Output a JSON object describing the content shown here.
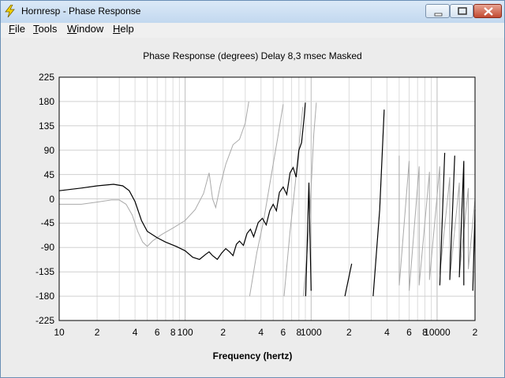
{
  "window": {
    "title": "Hornresp - Phase Response",
    "icon": "lightning-icon"
  },
  "menu": {
    "items": [
      {
        "label": "File",
        "underline": "F",
        "rest": "ile"
      },
      {
        "label": "Tools",
        "underline": "T",
        "rest": "ools"
      },
      {
        "label": "Window",
        "underline": "W",
        "rest": "indow"
      },
      {
        "label": "Help",
        "underline": "H",
        "rest": "elp"
      }
    ]
  },
  "chart_data": {
    "type": "line",
    "title": "Phase Response (degrees)    Delay 8,3 msec    Masked",
    "xlabel": "Frequency (hertz)",
    "ylabel": "",
    "x_scale": "log",
    "xlim": [
      10,
      20000
    ],
    "ylim": [
      -225,
      225
    ],
    "yticks": [
      225,
      180,
      135,
      90,
      45,
      0,
      -45,
      -90,
      -135,
      -180,
      -225
    ],
    "xticks": [
      {
        "value": 10,
        "label": "10"
      },
      {
        "value": 20,
        "label": "2"
      },
      {
        "value": 40,
        "label": "4"
      },
      {
        "value": 60,
        "label": "6"
      },
      {
        "value": 80,
        "label": "8"
      },
      {
        "value": 100,
        "label": "100"
      },
      {
        "value": 200,
        "label": "2"
      },
      {
        "value": 400,
        "label": "4"
      },
      {
        "value": 600,
        "label": "6"
      },
      {
        "value": 800,
        "label": "8"
      },
      {
        "value": 1000,
        "label": "1000"
      },
      {
        "value": 2000,
        "label": "2"
      },
      {
        "value": 4000,
        "label": "4"
      },
      {
        "value": 6000,
        "label": "6"
      },
      {
        "value": 8000,
        "label": "8"
      },
      {
        "value": 10000,
        "label": "10000"
      },
      {
        "value": 20000,
        "label": "2"
      }
    ],
    "grid": true,
    "series": [
      {
        "color": "#000000",
        "points": [
          [
            10,
            15
          ],
          [
            15,
            20
          ],
          [
            20,
            24
          ],
          [
            27,
            27
          ],
          [
            32,
            24
          ],
          [
            36,
            15
          ],
          [
            40,
            -5
          ],
          [
            45,
            -40
          ],
          [
            50,
            -60
          ],
          [
            60,
            -72
          ],
          [
            70,
            -80
          ],
          [
            85,
            -88
          ],
          [
            100,
            -96
          ],
          [
            115,
            -108
          ],
          [
            130,
            -112
          ],
          [
            145,
            -103
          ],
          [
            155,
            -98
          ],
          [
            165,
            -105
          ],
          [
            180,
            -112
          ],
          [
            195,
            -100
          ],
          [
            210,
            -92
          ],
          [
            225,
            -98
          ],
          [
            240,
            -105
          ],
          [
            255,
            -84
          ],
          [
            270,
            -78
          ],
          [
            290,
            -86
          ],
          [
            310,
            -64
          ],
          [
            330,
            -56
          ],
          [
            350,
            -70
          ],
          [
            380,
            -44
          ],
          [
            410,
            -36
          ],
          [
            440,
            -48
          ],
          [
            470,
            -22
          ],
          [
            500,
            -10
          ],
          [
            530,
            -22
          ],
          [
            560,
            12
          ],
          [
            600,
            22
          ],
          [
            640,
            8
          ],
          [
            680,
            48
          ],
          [
            720,
            58
          ],
          [
            760,
            40
          ],
          [
            800,
            90
          ],
          [
            840,
            104
          ],
          [
            880,
            150
          ],
          [
            900,
            178
          ],
          [
            905,
            -180
          ],
          [
            960,
            30
          ],
          [
            1000,
            -170
          ],
          [
            1100,
            178
          ],
          [
            1105,
            -180
          ],
          [
            1250,
            178
          ],
          [
            1255,
            -180
          ],
          [
            1500,
            170
          ],
          [
            1505,
            -180
          ],
          [
            1850,
            160
          ],
          [
            1855,
            -180
          ],
          [
            2100,
            -120
          ],
          [
            2300,
            178
          ],
          [
            2305,
            -180
          ],
          [
            2700,
            140
          ],
          [
            2705,
            -180
          ],
          [
            3100,
            178
          ],
          [
            3105,
            -180
          ],
          [
            3500,
            -20
          ],
          [
            3800,
            165
          ],
          [
            3805,
            -180
          ],
          [
            4300,
            110
          ],
          [
            4305,
            -180
          ],
          [
            4800,
            155
          ],
          [
            4805,
            -175
          ],
          [
            5300,
            120
          ],
          [
            5305,
            -180
          ],
          [
            5900,
            140
          ],
          [
            5905,
            -170
          ],
          [
            6500,
            115
          ],
          [
            6505,
            -180
          ],
          [
            7200,
            130
          ],
          [
            7205,
            -175
          ],
          [
            8000,
            100
          ],
          [
            8005,
            -170
          ],
          [
            8700,
            128
          ],
          [
            8705,
            -180
          ],
          [
            9600,
            90
          ],
          [
            9605,
            -175
          ],
          [
            10500,
            110
          ],
          [
            10505,
            -160
          ],
          [
            11500,
            85
          ],
          [
            11505,
            -170
          ],
          [
            12600,
            120
          ],
          [
            12605,
            -150
          ],
          [
            13800,
            80
          ],
          [
            13805,
            -175
          ],
          [
            15000,
            125
          ],
          [
            15005,
            -145
          ],
          [
            16300,
            70
          ],
          [
            16305,
            -160
          ],
          [
            17700,
            170
          ],
          [
            17705,
            -120
          ],
          [
            19200,
            150
          ],
          [
            19205,
            -170
          ],
          [
            20000,
            -20
          ]
        ]
      },
      {
        "color": "#aaaaaa",
        "points": [
          [
            10,
            -10
          ],
          [
            15,
            -10
          ],
          [
            20,
            -6
          ],
          [
            26,
            -2
          ],
          [
            30,
            -2
          ],
          [
            34,
            -10
          ],
          [
            38,
            -30
          ],
          [
            42,
            -60
          ],
          [
            46,
            -80
          ],
          [
            50,
            -88
          ],
          [
            55,
            -78
          ],
          [
            65,
            -66
          ],
          [
            80,
            -54
          ],
          [
            100,
            -40
          ],
          [
            120,
            -20
          ],
          [
            140,
            10
          ],
          [
            155,
            48
          ],
          [
            165,
            0
          ],
          [
            175,
            -16
          ],
          [
            190,
            24
          ],
          [
            210,
            64
          ],
          [
            240,
            100
          ],
          [
            270,
            110
          ],
          [
            300,
            140
          ],
          [
            320,
            180
          ],
          [
            325,
            -180
          ],
          [
            370,
            -100
          ],
          [
            420,
            -40
          ],
          [
            480,
            40
          ],
          [
            540,
            110
          ],
          [
            600,
            175
          ],
          [
            610,
            -180
          ],
          [
            680,
            -60
          ],
          [
            750,
            30
          ],
          [
            820,
            120
          ],
          [
            860,
            170
          ],
          [
            870,
            -180
          ],
          [
            960,
            -60
          ],
          [
            1050,
            120
          ],
          [
            1100,
            178
          ],
          [
            1105,
            -180
          ],
          [
            1250,
            160
          ],
          [
            1255,
            -180
          ],
          [
            1500,
            100
          ],
          [
            1505,
            -180
          ],
          [
            1850,
            140
          ],
          [
            1855,
            -180
          ],
          [
            2300,
            150
          ],
          [
            2305,
            -175
          ],
          [
            2800,
            120
          ],
          [
            2805,
            -180
          ],
          [
            3400,
            100
          ],
          [
            3405,
            -170
          ],
          [
            4100,
            90
          ],
          [
            4105,
            -175
          ],
          [
            5000,
            80
          ],
          [
            5005,
            -160
          ],
          [
            6000,
            70
          ],
          [
            6005,
            -170
          ],
          [
            7200,
            60
          ],
          [
            7205,
            -160
          ],
          [
            8700,
            50
          ],
          [
            8705,
            -150
          ],
          [
            10500,
            60
          ],
          [
            10505,
            -140
          ],
          [
            12600,
            40
          ],
          [
            12605,
            -150
          ],
          [
            15000,
            30
          ],
          [
            15005,
            -140
          ],
          [
            17700,
            20
          ],
          [
            17705,
            -130
          ],
          [
            20000,
            0
          ]
        ]
      }
    ]
  }
}
